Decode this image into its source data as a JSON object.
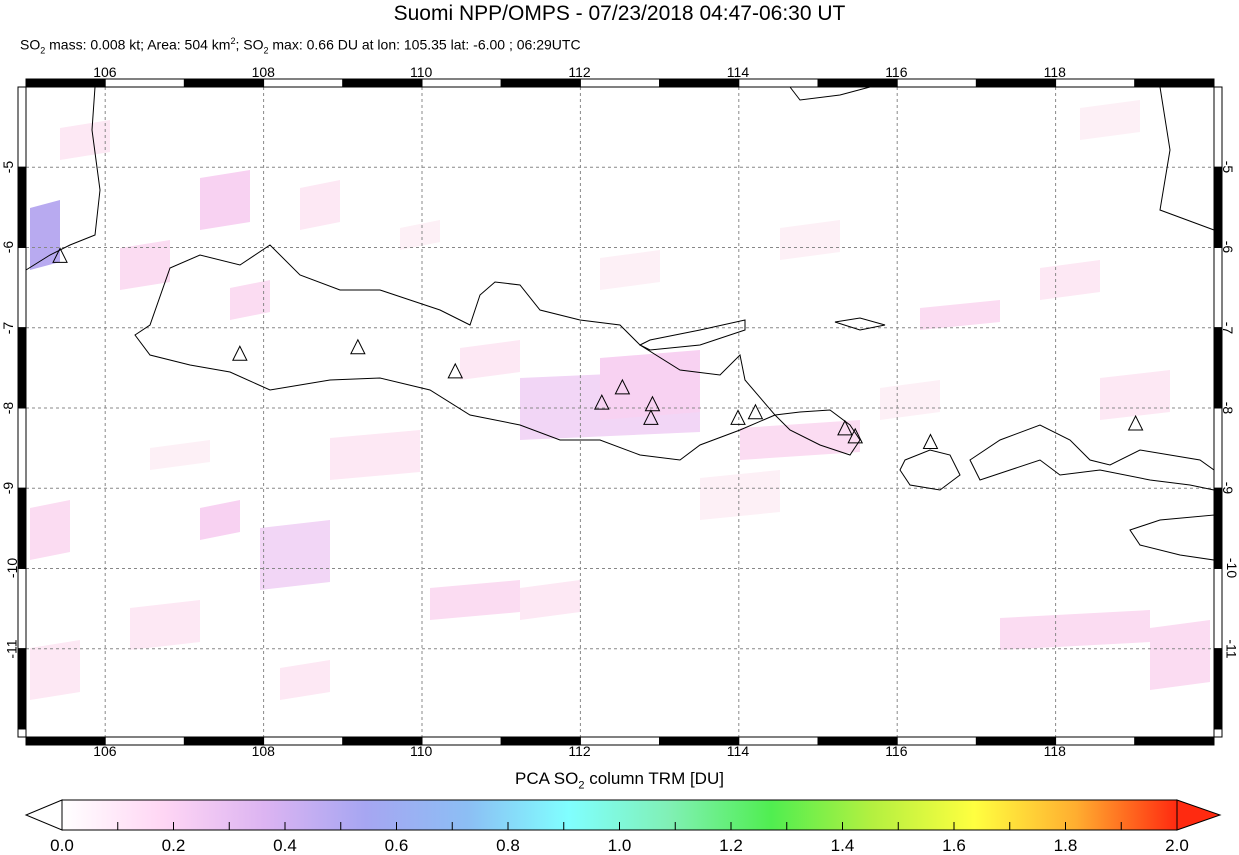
{
  "title": "Suomi NPP/OMPS - 07/23/2018 04:47-06:30 UT",
  "subtitle": {
    "mass_prefix": "SO",
    "mass_text": " mass: 0.008 kt; Area: 504 km",
    "area_sup": "2",
    "max_prefix": "; SO",
    "max_text": " max: 0.66 DU at lon: 105.35 lat: -6.00 ; 06:29UTC",
    "sub2": "2"
  },
  "map": {
    "lon_range": [
      105,
      120
    ],
    "lat_range": [
      -12.1,
      -4
    ],
    "lon_ticks": [
      "106",
      "108",
      "110",
      "112",
      "114",
      "116",
      "118"
    ],
    "lat_ticks": [
      "-5",
      "-6",
      "-7",
      "-8",
      "-9",
      "-10",
      "-11"
    ],
    "grid": "dashed",
    "volcanoes": [
      {
        "lon": 107.7,
        "lat": -7.33
      },
      {
        "lon": 109.19,
        "lat": -7.25
      },
      {
        "lon": 110.42,
        "lat": -7.55
      },
      {
        "lon": 112.27,
        "lat": -7.94
      },
      {
        "lon": 112.53,
        "lat": -7.75
      },
      {
        "lon": 112.91,
        "lat": -7.96
      },
      {
        "lon": 112.89,
        "lat": -8.13
      },
      {
        "lon": 113.99,
        "lat": -8.13
      },
      {
        "lon": 114.21,
        "lat": -8.06
      },
      {
        "lon": 115.34,
        "lat": -8.26
      },
      {
        "lon": 115.47,
        "lat": -8.36
      },
      {
        "lon": 116.42,
        "lat": -8.43
      },
      {
        "lon": 119.01,
        "lat": -8.2
      },
      {
        "lon": 105.43,
        "lat": -6.11
      }
    ]
  },
  "colorbar": {
    "title_a": "PCA SO",
    "title_sub": "2",
    "title_b": " column TRM [DU]",
    "range": [
      0,
      2
    ],
    "tick_labels": [
      "0.0",
      "0.2",
      "0.4",
      "0.6",
      "0.8",
      "1.0",
      "1.2",
      "1.4",
      "1.6",
      "1.8",
      "2.0"
    ],
    "colors": [
      "#ffffff",
      "#ffd6f4",
      "#dcb4f2",
      "#a6a6f2",
      "#8cbef4",
      "#80ffff",
      "#80f0b4",
      "#50ee50",
      "#b4f040",
      "#ffff40",
      "#ffae30",
      "#ff2a10"
    ]
  }
}
